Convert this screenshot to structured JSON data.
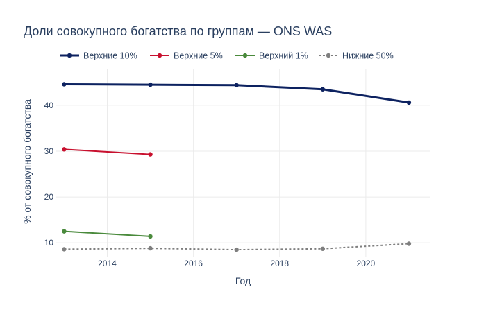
{
  "chart_data": {
    "type": "line",
    "title": "Доли совокупного богатства по группам — ONS WAS",
    "xlabel": "Год",
    "ylabel": "% от совокупного богатства",
    "xlim": [
      2012.8,
      2021.5
    ],
    "ylim": [
      7,
      48
    ],
    "xticks": [
      2014,
      2016,
      2018,
      2020
    ],
    "yticks": [
      10,
      20,
      30,
      40
    ],
    "grid": true,
    "legend_position": "top",
    "series": [
      {
        "name": "Верхние 10%",
        "color": "#0d2260",
        "dash": "solid",
        "width": 3,
        "x": [
          2013,
          2015,
          2017,
          2019,
          2021
        ],
        "y": [
          44.6,
          44.5,
          44.4,
          43.5,
          40.6
        ]
      },
      {
        "name": "Верхние 5%",
        "color": "#c8102e",
        "dash": "solid",
        "width": 2,
        "x": [
          2013,
          2015
        ],
        "y": [
          30.4,
          29.3
        ]
      },
      {
        "name": "Верхний 1%",
        "color": "#4a8a3c",
        "dash": "solid",
        "width": 2,
        "x": [
          2013,
          2015
        ],
        "y": [
          12.5,
          11.4
        ]
      },
      {
        "name": "Нижние 50%",
        "color": "#7f7f7f",
        "dash": "dot",
        "width": 2,
        "x": [
          2013,
          2015,
          2017,
          2019,
          2021
        ],
        "y": [
          8.6,
          8.8,
          8.5,
          8.7,
          9.8
        ]
      }
    ]
  }
}
